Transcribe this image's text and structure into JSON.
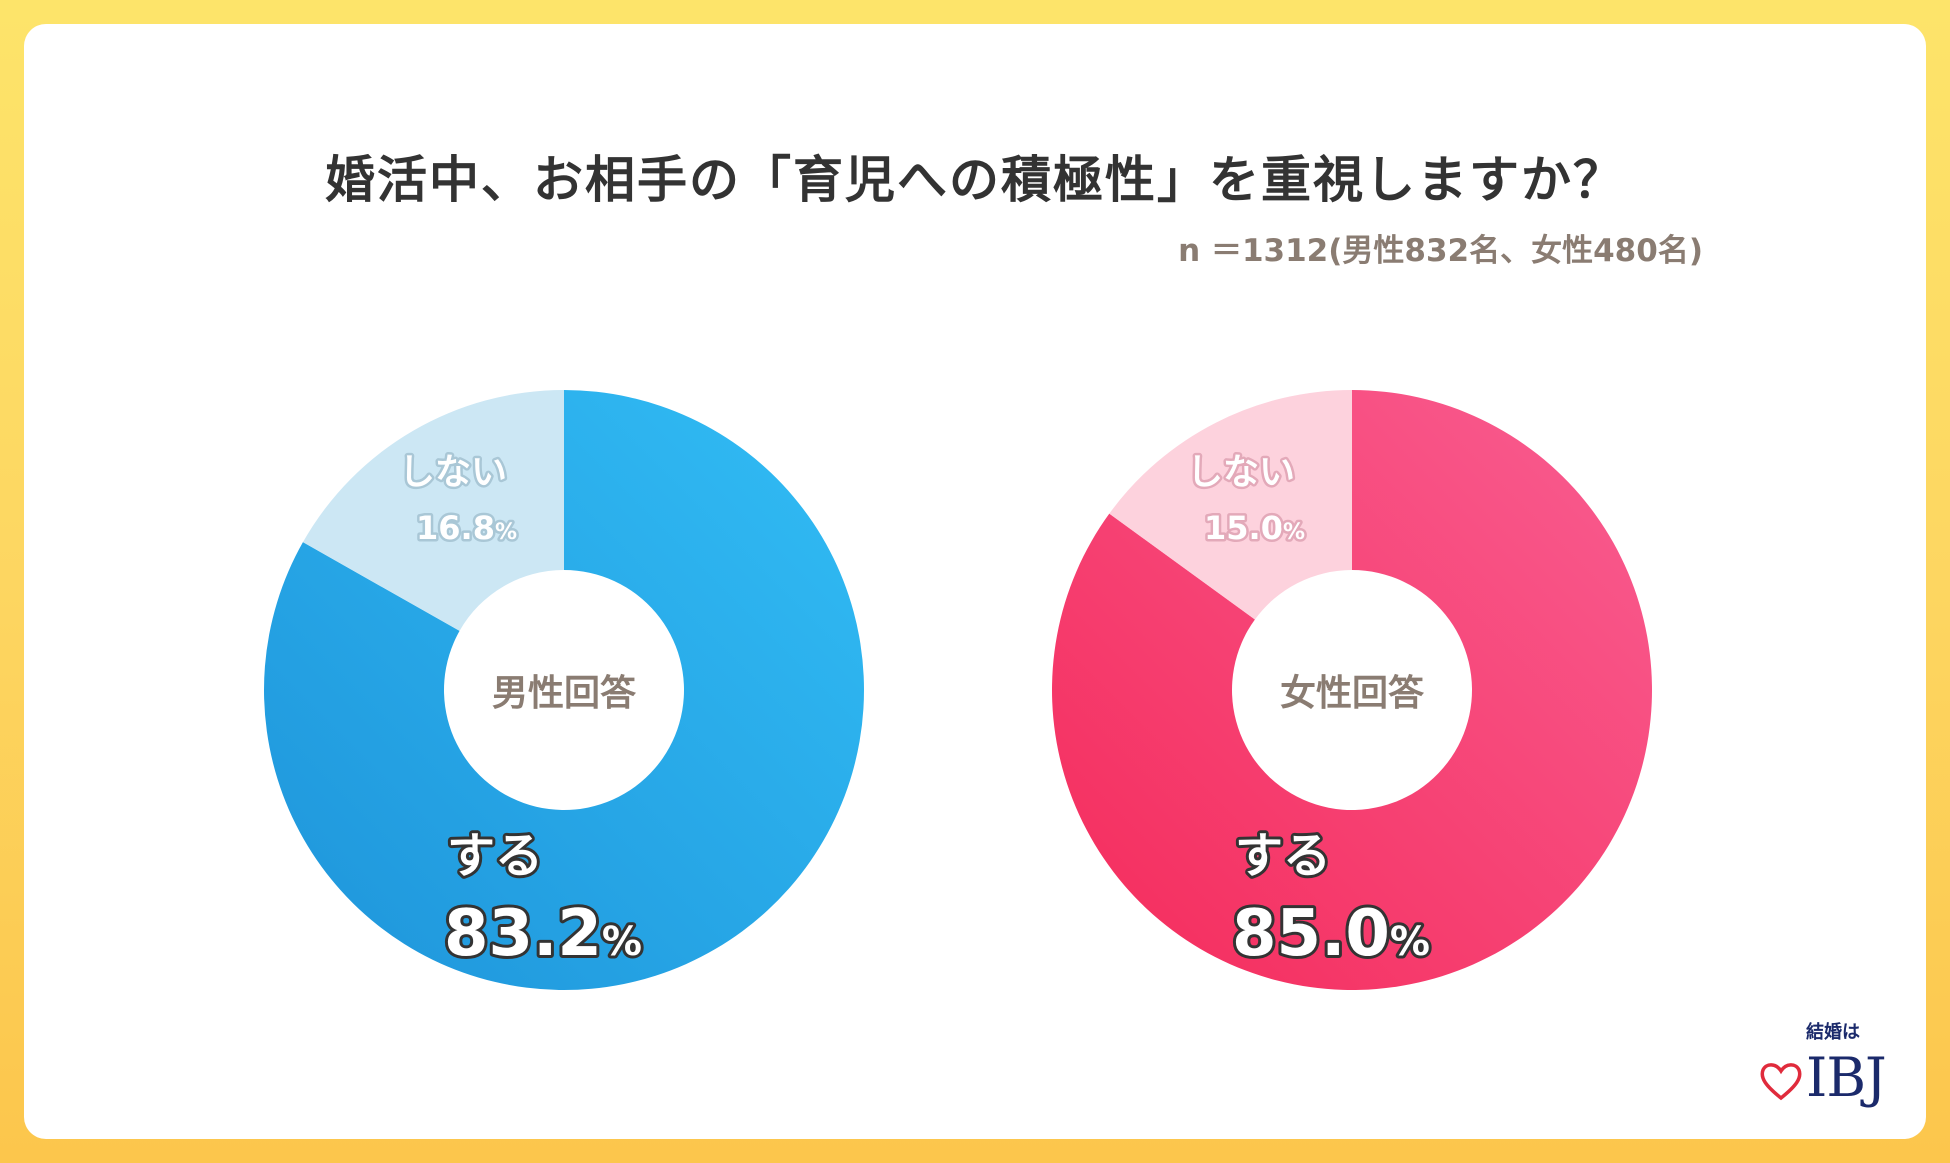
{
  "title": "婚活中、お相手の「育児への積極性」を重視しますか？",
  "sample_note": "n ＝1312(男性832名、女性480名)",
  "colors": {
    "background": "#fdd661",
    "male_yes_start": "#1e94da",
    "male_yes_end": "#32bdf5",
    "male_no": "#cce7f4",
    "female_yes_start": "#f42a5a",
    "female_yes_end": "#f95e92",
    "female_no": "#fdd2dd"
  },
  "chart_data": [
    {
      "type": "pie",
      "title": "男性回答",
      "categories": [
        "する",
        "しない"
      ],
      "values": [
        83.2,
        16.8
      ],
      "labels": [
        "83.2",
        "16.8"
      ]
    },
    {
      "type": "pie",
      "title": "女性回答",
      "categories": [
        "する",
        "しない"
      ],
      "values": [
        85.0,
        15.0
      ],
      "labels": [
        "85.0",
        "15.0"
      ]
    }
  ],
  "percent_sign": "%",
  "logo": {
    "tagline": "結婚は",
    "name": "IBJ"
  }
}
